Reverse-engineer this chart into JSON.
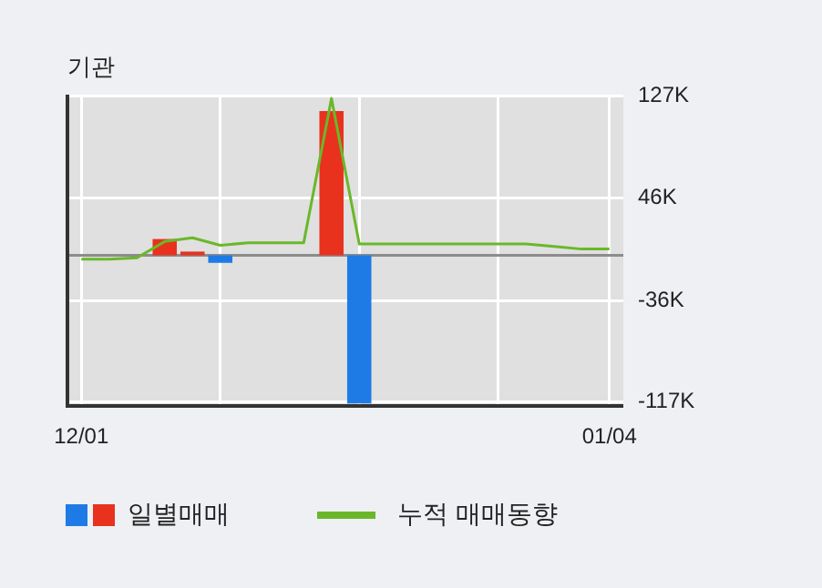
{
  "chart_data": {
    "type": "bar",
    "title": "기관",
    "categories": [
      "12/01",
      null,
      null,
      null,
      null,
      null,
      null,
      null,
      null,
      null,
      null,
      null,
      null,
      null,
      null,
      null,
      null,
      null,
      null,
      "01/04"
    ],
    "series": [
      {
        "name": "일별매매",
        "colors": [
          null,
          null,
          null,
          "#e8321e",
          "#e8321e",
          "#1e7be6",
          null,
          null,
          null,
          "#e8321e",
          "#1e7be6",
          null,
          null,
          null,
          null,
          null,
          null,
          null,
          null,
          null
        ],
        "values": [
          null,
          null,
          null,
          13000,
          3000,
          -6000,
          null,
          null,
          null,
          115000,
          -118000,
          null,
          null,
          null,
          null,
          null,
          null,
          null,
          null,
          null
        ]
      },
      {
        "name": "누적 매매동향",
        "type": "line",
        "color": "#6ab82a",
        "values": [
          -3000,
          -3000,
          -2000,
          11000,
          14000,
          8000,
          10000,
          10000,
          10000,
          125000,
          9000,
          9000,
          9000,
          9000,
          9000,
          9000,
          9000,
          7000,
          5000,
          5000
        ]
      }
    ],
    "ylim": [
      -120000,
      128000
    ],
    "yticks": [
      {
        "value": -117000,
        "label": "-117K"
      },
      {
        "value": -36000,
        "label": "-36K"
      },
      {
        "value": 46000,
        "label": "46K"
      },
      {
        "value": 127000,
        "label": "127K"
      }
    ],
    "grid": true,
    "legend": "bottom",
    "marker": "none"
  }
}
